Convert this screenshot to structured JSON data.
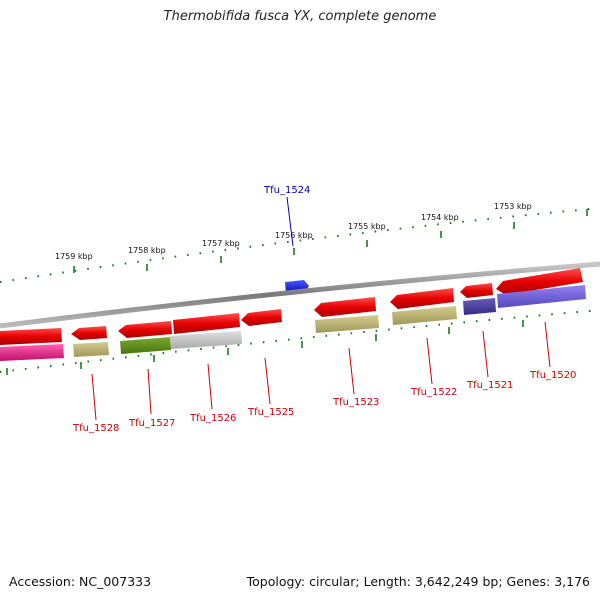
{
  "title": "Thermobifida fusca YX, complete genome",
  "footer": {
    "accession": "Accession: NC_007333",
    "summary": "Topology: circular; Length: 3,642,249 bp; Genes: 3,176"
  },
  "scale_labels": [
    "1759 kbp",
    "1758 kbp",
    "1757 kbp",
    "1756 kbp",
    "1755 kbp",
    "1754 kbp",
    "1753 kbp"
  ],
  "genes": [
    {
      "name": "Tfu_1524",
      "strand": "+",
      "color": "#0a14e6"
    },
    {
      "name": "Tfu_1520",
      "strand": "-",
      "color": "#e60000"
    },
    {
      "name": "Tfu_1521",
      "strand": "-",
      "color": "#e60000"
    },
    {
      "name": "Tfu_1522",
      "strand": "-",
      "color": "#e60000"
    },
    {
      "name": "Tfu_1523",
      "strand": "-",
      "color": "#e60000"
    },
    {
      "name": "Tfu_1525",
      "strand": "-",
      "color": "#e60000"
    },
    {
      "name": "Tfu_1526",
      "strand": "-",
      "color": "#e60000"
    },
    {
      "name": "Tfu_1527",
      "strand": "-",
      "color": "#e60000"
    },
    {
      "name": "Tfu_1528",
      "strand": "-",
      "color": "#e60000"
    }
  ],
  "colors": {
    "backbone": "#8a8a8a",
    "tick": "#1a7a1a",
    "forward_gene": "#0a14e6",
    "reverse_gene": "#e60000",
    "reverse_label": "#cc0000",
    "forward_label": "#0000aa",
    "cog_magenta": "#e0207a",
    "cog_khaki": "#b8b070",
    "cog_olive": "#5a8a18",
    "cog_grey": "#c4c4c4",
    "cog_indigo": "#4a3c9a",
    "cog_violet": "#7060d8"
  }
}
